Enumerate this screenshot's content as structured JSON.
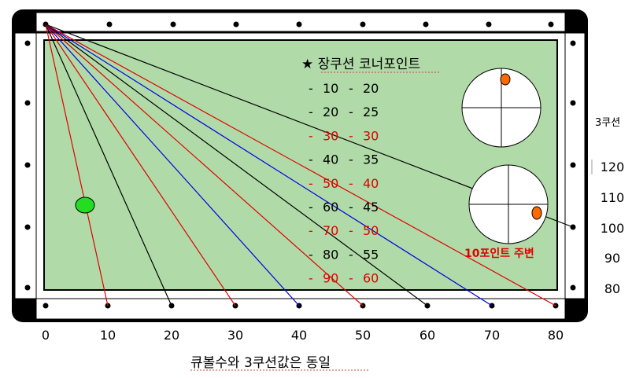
{
  "title": "★ 장쿠션 코너포인트",
  "corner_table": [
    {
      "dash": "-",
      "a": "10",
      "b": "20",
      "highlight": false
    },
    {
      "dash": "-",
      "a": "20",
      "b": "25",
      "highlight": false
    },
    {
      "dash": "-",
      "a": "30",
      "b": "30",
      "highlight": true
    },
    {
      "dash": "-",
      "a": "40",
      "b": "35",
      "highlight": false
    },
    {
      "dash": "-",
      "a": "50",
      "b": "40",
      "highlight": true
    },
    {
      "dash": "-",
      "a": "60",
      "b": "45",
      "highlight": false
    },
    {
      "dash": "-",
      "a": "70",
      "b": "50",
      "highlight": true
    },
    {
      "dash": "-",
      "a": "80",
      "b": "55",
      "highlight": false
    },
    {
      "dash": "-",
      "a": "90",
      "b": "60",
      "highlight": true
    }
  ],
  "bottom_labels": [
    "0",
    "10",
    "20",
    "30",
    "40",
    "50",
    "60",
    "70",
    "80"
  ],
  "right_labels": [
    "120",
    "110",
    "100",
    "90",
    "80"
  ],
  "right_title": "3쿠션",
  "point_note": "10포인트 주변",
  "caption": "큐볼수와 3쿠션값은 동일",
  "lines": [
    {
      "target": "10",
      "color": "#e00000"
    },
    {
      "target": "20",
      "color": "#000000"
    },
    {
      "target": "30",
      "color": "#e00000"
    },
    {
      "target": "40",
      "color": "#0000e0"
    },
    {
      "target": "50",
      "color": "#e00000"
    },
    {
      "target": "60",
      "color": "#000000"
    },
    {
      "target": "70",
      "color": "#0000e0"
    },
    {
      "target": "80",
      "color": "#e00000"
    },
    {
      "target": "100",
      "color": "#000000"
    }
  ],
  "colors": {
    "felt": "#b0dba8",
    "rail": "#000000",
    "highlight": "#e00000",
    "text": "#000000",
    "ball_green": "#22dd22",
    "ball_orange": "#ff6a00"
  }
}
